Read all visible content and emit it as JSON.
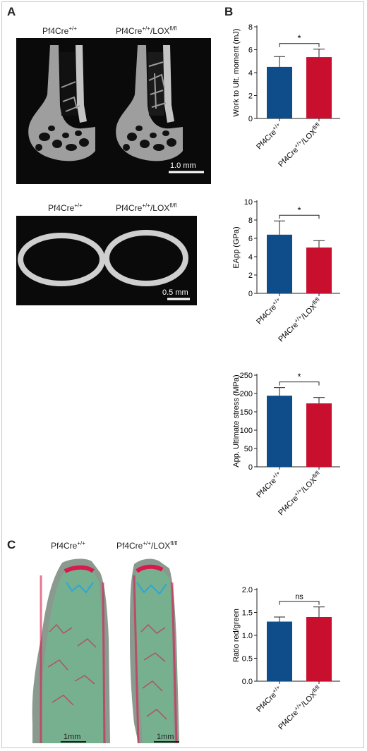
{
  "panels": {
    "A": "A",
    "B": "B",
    "C": "C"
  },
  "groups": {
    "ctrl": {
      "base": "Pf4Cre",
      "sup": "+/+"
    },
    "ko": {
      "base": "Pf4Cre",
      "sup": "+/+",
      "mid": "/LOX",
      "sup2": "fl/fl"
    }
  },
  "images": {
    "femur_scale": "1.0 mm",
    "cross_scale": "0.5 mm",
    "histo_scale_left": "1mm",
    "histo_scale_right": "1mm"
  },
  "colors": {
    "ctrl": "#0f4c8a",
    "ko": "#c8102e"
  },
  "chart_data": [
    {
      "type": "bar",
      "categories": [
        "Pf4Cre+/+",
        "Pf4Cre+/+/LOXfl/fl"
      ],
      "values": [
        4.5,
        5.35
      ],
      "errors": [
        0.9,
        0.7
      ],
      "ylabel": "Work to Ult. moment (mJ)",
      "ylim": [
        0,
        8
      ],
      "yticks": [
        0,
        2,
        4,
        6,
        8
      ],
      "significance": "*"
    },
    {
      "type": "bar",
      "categories": [
        "Pf4Cre+/+",
        "Pf4Cre+/+/LOXfl/fl"
      ],
      "values": [
        6.4,
        5.0
      ],
      "errors": [
        1.5,
        0.75
      ],
      "ylabel": "EApp (GPa)",
      "ylim": [
        0,
        10
      ],
      "yticks": [
        0,
        2,
        4,
        6,
        8,
        10
      ],
      "significance": "*"
    },
    {
      "type": "bar",
      "categories": [
        "Pf4Cre+/+",
        "Pf4Cre+/+/LOXfl/fl"
      ],
      "values": [
        194,
        173
      ],
      "errors": [
        22,
        16
      ],
      "ylabel": "App. Ultimate stress (MPa)",
      "ylim": [
        0,
        250
      ],
      "yticks": [
        0,
        50,
        100,
        150,
        200,
        250
      ],
      "significance": "*"
    },
    {
      "type": "bar",
      "categories": [
        "Pf4Cre+/+",
        "Pf4Cre+/+/LOXfl/fl"
      ],
      "values": [
        1.3,
        1.4
      ],
      "errors": [
        0.1,
        0.22
      ],
      "ylabel": "Ratio red/green",
      "ylim": [
        0,
        2.0
      ],
      "yticks": [
        "0.0",
        "0.5",
        "1.0",
        "1.5",
        "2.0"
      ],
      "significance": "ns"
    }
  ]
}
